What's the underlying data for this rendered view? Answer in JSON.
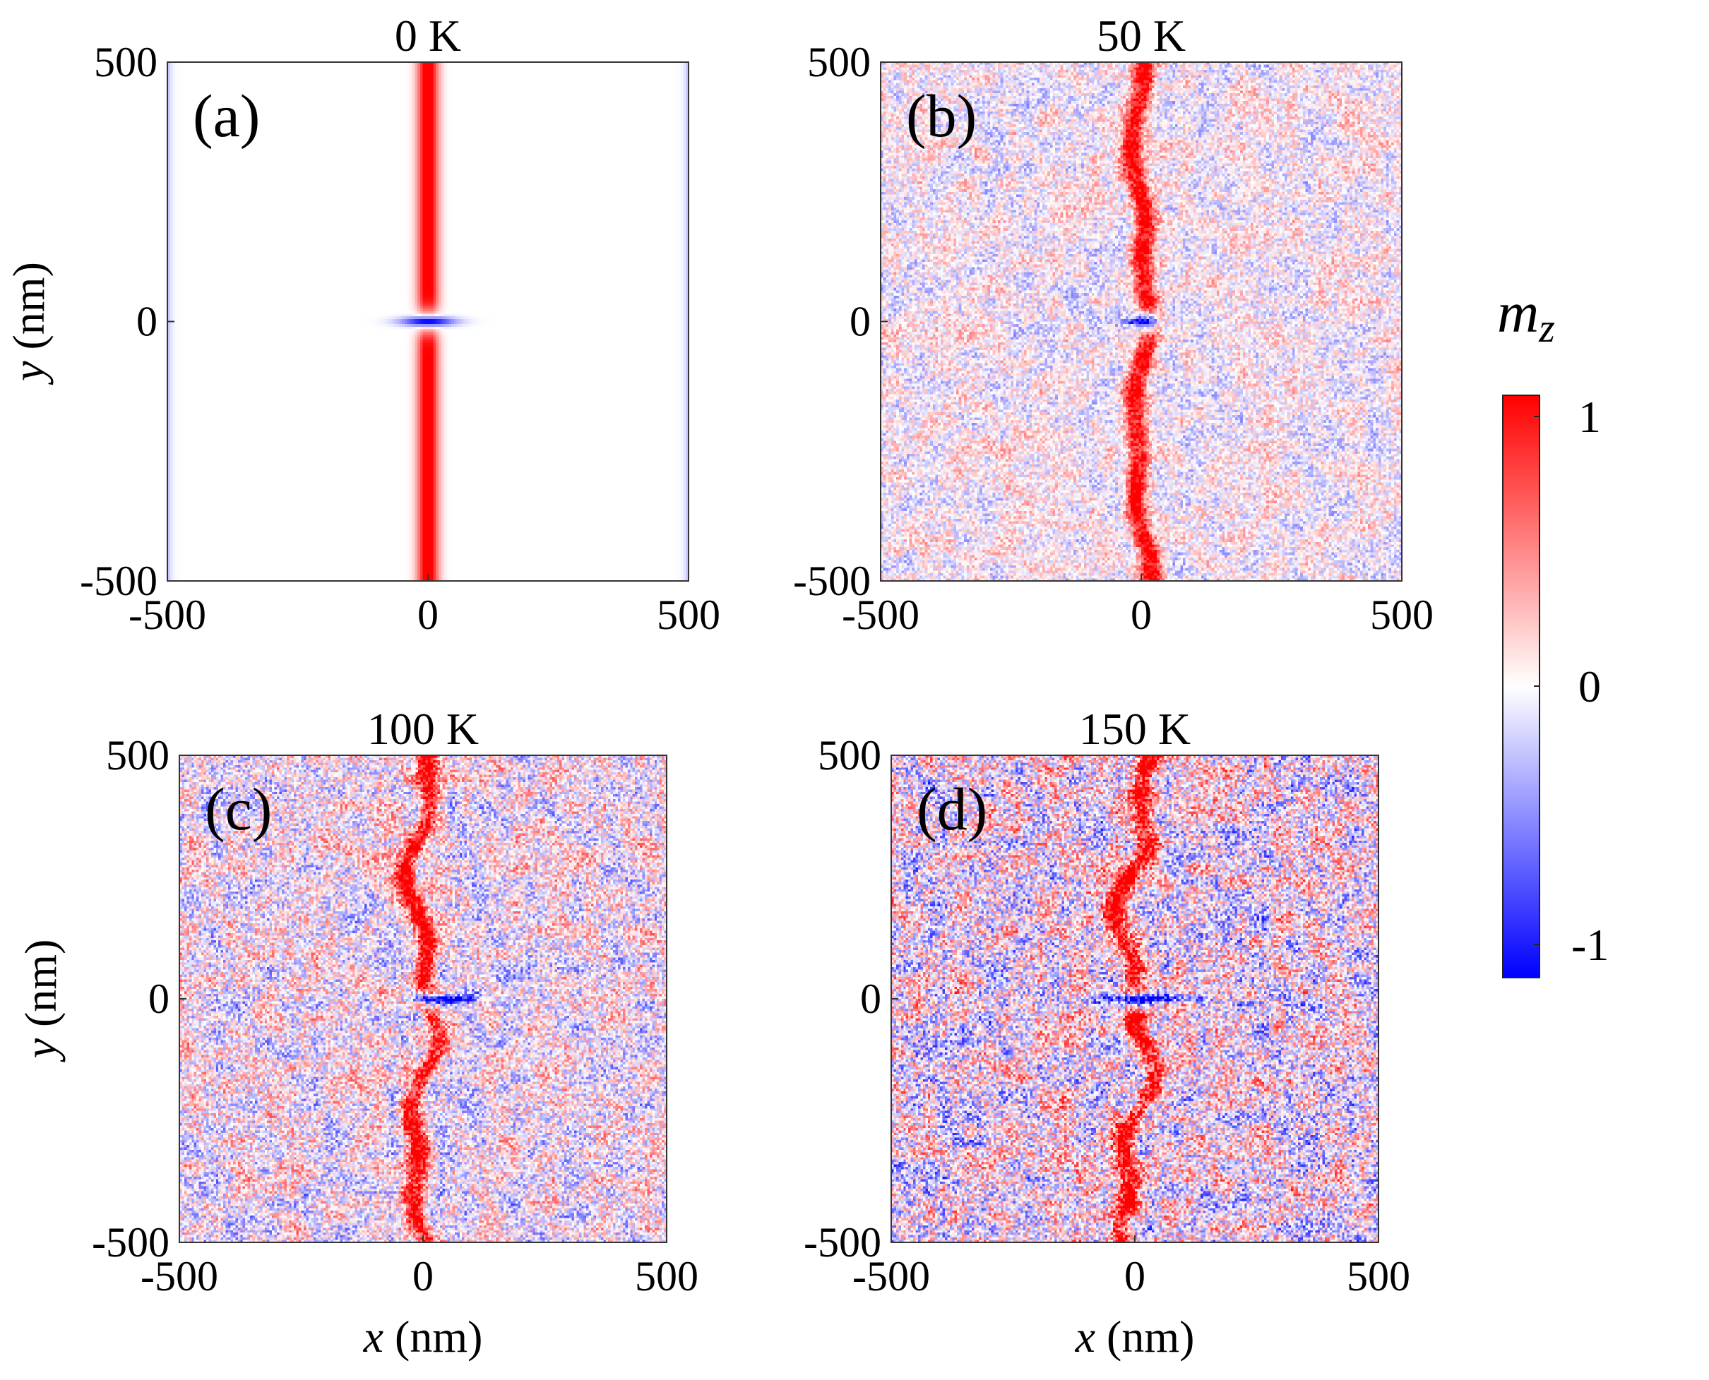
{
  "chart_data": [
    {
      "type": "heatmap",
      "panel": "(a)",
      "title": "0 K",
      "temperature_K": 0,
      "xlabel": "x (nm)",
      "ylabel": "y (nm)",
      "xlim": [
        -500,
        500
      ],
      "ylim": [
        -500,
        500
      ],
      "xticks": [
        "-500",
        "0",
        "500"
      ],
      "yticks": [
        "500",
        "0",
        "-500"
      ],
      "show_xlabel": false,
      "show_ylabel": true,
      "noise": 0.0,
      "wall_wiggle_nm": 0,
      "defect_width_nm": 80,
      "defect_offset_nm": 0
    },
    {
      "type": "heatmap",
      "panel": "(b)",
      "title": "50 K",
      "temperature_K": 50,
      "xlabel": "x (nm)",
      "ylabel": "y (nm)",
      "xlim": [
        -500,
        500
      ],
      "ylim": [
        -500,
        500
      ],
      "xticks": [
        "-500",
        "0",
        "500"
      ],
      "yticks": [
        "500",
        "0",
        "-500"
      ],
      "show_xlabel": false,
      "show_ylabel": false,
      "noise": 0.35,
      "wall_wiggle_nm": 12,
      "defect_width_nm": 45,
      "defect_offset_nm": 0
    },
    {
      "type": "heatmap",
      "panel": "(c)",
      "title": "100 K",
      "temperature_K": 100,
      "xlabel": "x (nm)",
      "ylabel": "y (nm)",
      "xlim": [
        -500,
        500
      ],
      "ylim": [
        -500,
        500
      ],
      "xticks": [
        "-500",
        "0",
        "500"
      ],
      "yticks": [
        "500",
        "0",
        "-500"
      ],
      "show_xlabel": true,
      "show_ylabel": true,
      "noise": 0.5,
      "wall_wiggle_nm": 22,
      "defect_width_nm": 110,
      "defect_offset_nm": 40
    },
    {
      "type": "heatmap",
      "panel": "(d)",
      "title": "150 K",
      "temperature_K": 150,
      "xlabel": "x (nm)",
      "ylabel": "y (nm)",
      "xlim": [
        -500,
        500
      ],
      "ylim": [
        -500,
        500
      ],
      "xticks": [
        "-500",
        "0",
        "500"
      ],
      "yticks": [
        "500",
        "0",
        "-500"
      ],
      "show_xlabel": true,
      "show_ylabel": false,
      "noise": 0.62,
      "wall_wiggle_nm": 28,
      "defect_width_nm": 170,
      "defect_offset_nm": 20
    }
  ],
  "colorbar": {
    "label_main": "m",
    "label_sub": "z",
    "range": [
      -1,
      1
    ],
    "ticks": [
      "1",
      "0",
      "-1"
    ],
    "colors": {
      "low": "#0000ff",
      "mid": "#ffffff",
      "high": "#ff0000"
    }
  }
}
